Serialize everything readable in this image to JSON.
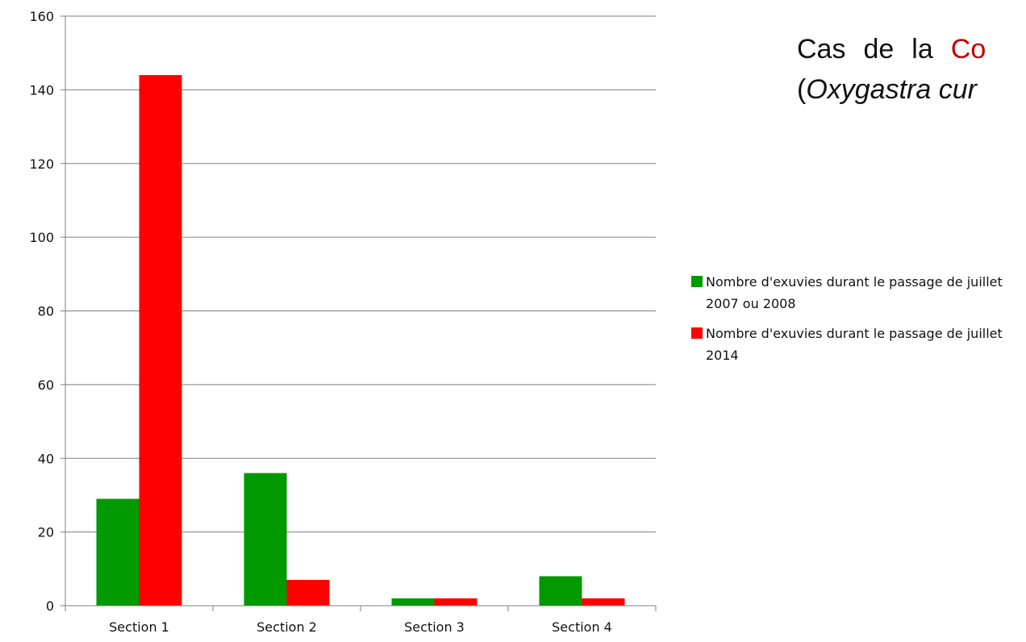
{
  "heading": {
    "line1_words": [
      "Cas",
      "de",
      "la"
    ],
    "line1_highlight": "Co",
    "line2_open": "(",
    "line2_italic": "Oxygastra cur"
  },
  "colors": {
    "series1": "#009900",
    "series2": "#ff0000",
    "highlight": "#c00000",
    "grid": "#7f7f7f"
  },
  "chart_data": {
    "type": "bar",
    "categories": [
      "Section 1",
      "Section 2",
      "Section 3",
      "Section 4"
    ],
    "series": [
      {
        "name": "Nombre d'exuvies durant le passage de juillet 2007 ou 2008",
        "values": [
          29,
          36,
          2,
          8
        ]
      },
      {
        "name": "Nombre d'exuvies durant le passage de juillet 2014",
        "values": [
          144,
          7,
          2,
          2
        ]
      }
    ],
    "yticks": [
      "0",
      "20",
      "40",
      "60",
      "80",
      "100",
      "120",
      "140",
      "160"
    ],
    "ylim": [
      0,
      160
    ],
    "grid": true,
    "legend_position": "right"
  }
}
